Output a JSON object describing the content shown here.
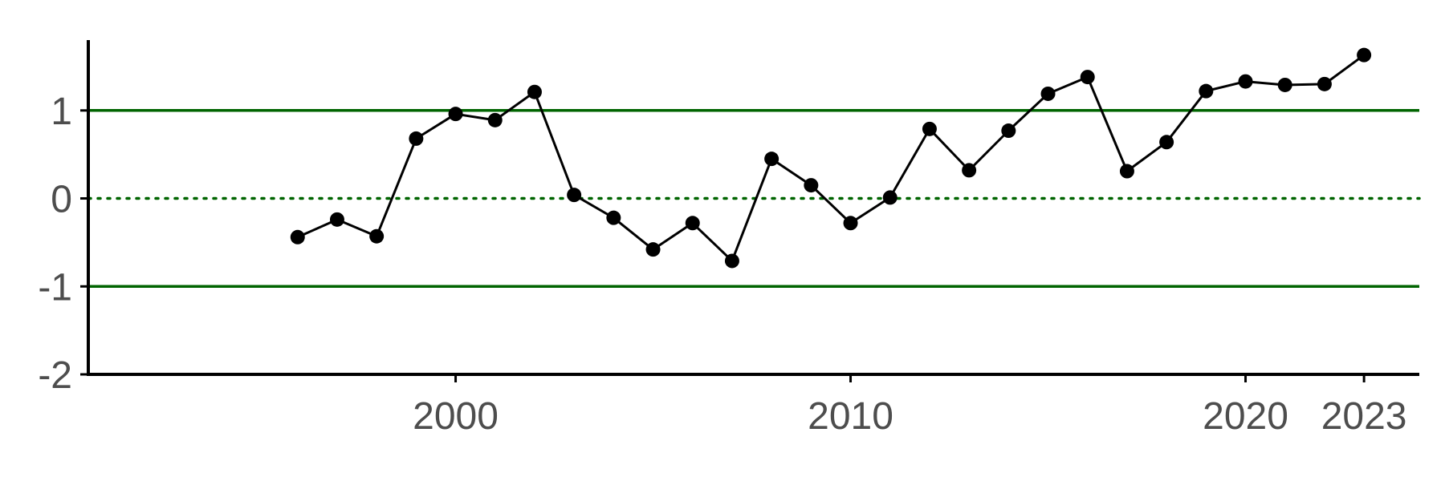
{
  "chart_data": {
    "type": "line",
    "title": "",
    "xlabel": "",
    "ylabel": "",
    "xlim": [
      1990.7,
      2024.4
    ],
    "ylim": [
      -2,
      1.8
    ],
    "x_ticks": [
      2000,
      2010,
      2020,
      2023
    ],
    "y_ticks": [
      -2,
      -1,
      0,
      1
    ],
    "reference_lines": [
      {
        "y": 1,
        "style": "solid",
        "color": "#006400"
      },
      {
        "y": 0,
        "style": "dotted",
        "color": "#006400"
      },
      {
        "y": -1,
        "style": "solid",
        "color": "#006400"
      }
    ],
    "series": [
      {
        "color": "#000000",
        "x": [
          1996,
          1997,
          1998,
          1999,
          2000,
          2001,
          2002,
          2003,
          2004,
          2005,
          2006,
          2007,
          2008,
          2009,
          2010,
          2011,
          2012,
          2013,
          2014,
          2015,
          2016,
          2017,
          2018,
          2019,
          2020,
          2021,
          2022,
          2023
        ],
        "y": [
          -0.44,
          -0.24,
          -0.43,
          0.68,
          0.96,
          0.89,
          1.21,
          0.04,
          -0.22,
          -0.58,
          -0.28,
          -0.71,
          0.45,
          0.15,
          -0.28,
          0.01,
          0.79,
          0.32,
          0.77,
          1.19,
          1.38,
          0.31,
          0.64,
          1.22,
          1.33,
          1.29,
          1.3,
          1.63
        ]
      }
    ],
    "grid": false,
    "legend": "none"
  }
}
